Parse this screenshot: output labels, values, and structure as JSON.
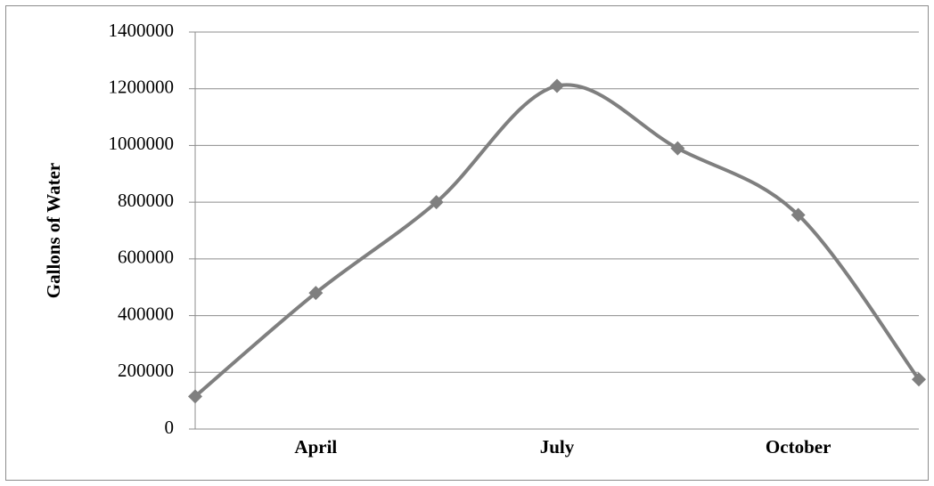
{
  "chart_data": {
    "type": "line",
    "y_label": "Gallons of Water",
    "categories": [
      null,
      "April",
      null,
      "July",
      null,
      "October",
      null
    ],
    "series": [
      {
        "color": "#7f7f7f",
        "values": [
          115000,
          480000,
          800000,
          1210000,
          990000,
          755000,
          175000
        ]
      }
    ],
    "ylim": [
      0,
      1400000
    ],
    "yticks": [
      0,
      200000,
      400000,
      600000,
      800000,
      1000000,
      1200000,
      1400000
    ],
    "grid": true,
    "smooth": true
  }
}
